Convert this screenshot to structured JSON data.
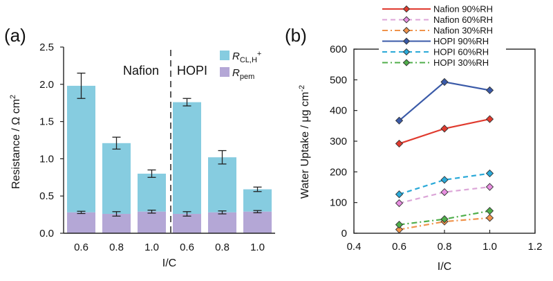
{
  "chart_data": [
    {
      "panel": "(a)",
      "type": "bar",
      "stacked": true,
      "categories": [
        "0.6",
        "0.8",
        "1.0",
        "0.6",
        "0.8",
        "1.0"
      ],
      "groups": [
        {
          "label": "Nafion",
          "category_indices": [
            0,
            1,
            2
          ]
        },
        {
          "label": "HOPI",
          "category_indices": [
            3,
            4,
            5
          ]
        }
      ],
      "series": [
        {
          "name_parts": {
            "main": "R",
            "sub": "pem"
          },
          "color": "#b4a7d6",
          "values": [
            0.28,
            0.26,
            0.29,
            0.26,
            0.28,
            0.29
          ],
          "errors": [
            0.015,
            0.03,
            0.02,
            0.03,
            0.02,
            0.015
          ]
        },
        {
          "name_parts": {
            "main": "R",
            "sub": "CL,H",
            "sup": "+"
          },
          "color": "#86cce0",
          "values": [
            1.7,
            0.95,
            0.51,
            1.5,
            0.74,
            0.3
          ],
          "totals": [
            1.98,
            1.21,
            0.8,
            1.76,
            1.02,
            0.59
          ],
          "errors": [
            0.17,
            0.08,
            0.05,
            0.05,
            0.09,
            0.03
          ]
        }
      ],
      "xlabel": "I/C",
      "ylabel": "Resistance / Ω cm",
      "ylabel_sup": "2",
      "ylim": [
        0,
        2.5
      ],
      "yticks": [
        "0.0",
        "0.5",
        "1.0",
        "1.5",
        "2.0",
        "2.5"
      ],
      "divider_after_index": 2,
      "grid": false,
      "legend_position": "top-right"
    },
    {
      "panel": "(b)",
      "type": "line",
      "x": [
        0.6,
        0.8,
        1.0
      ],
      "series": [
        {
          "name": "Nafion 90%RH",
          "color": "#e03a2e",
          "dash": "solid",
          "marker": "#e03a2e",
          "values": [
            292,
            341,
            372
          ]
        },
        {
          "name": "Nafion 60%RH",
          "color": "#dca6d8",
          "dash": "dash",
          "marker": "#e78ee0",
          "values": [
            98,
            134,
            151
          ]
        },
        {
          "name": "Nafion 30%RH",
          "color": "#f0924a",
          "dash": "dashdot",
          "marker": "#f0924a",
          "values": [
            12,
            38,
            50
          ]
        },
        {
          "name": "HOPI 90%RH",
          "color": "#3a5aa8",
          "dash": "solid",
          "marker": "#3a5aa8",
          "values": [
            367,
            493,
            466
          ]
        },
        {
          "name": "HOPI 60%RH",
          "color": "#2aa9d8",
          "dash": "dash",
          "marker": "#2aa9d8",
          "values": [
            127,
            174,
            195
          ]
        },
        {
          "name": "HOPI 30%RH",
          "color": "#4fae4a",
          "dash": "dashdot",
          "marker": "#4fae4a",
          "values": [
            28,
            46,
            73
          ]
        }
      ],
      "xlabel": "I/C",
      "ylabel": "Water Uptake / μg cm",
      "ylabel_sup": "-2",
      "xlim": [
        0.4,
        1.2
      ],
      "ylim": [
        0,
        600
      ],
      "xticks": [
        "0.4",
        "0.6",
        "0.8",
        "1.0",
        "1.2"
      ],
      "yticks": [
        "0",
        "100",
        "200",
        "300",
        "400",
        "500",
        "600"
      ],
      "grid": false,
      "legend_position": "top"
    }
  ]
}
